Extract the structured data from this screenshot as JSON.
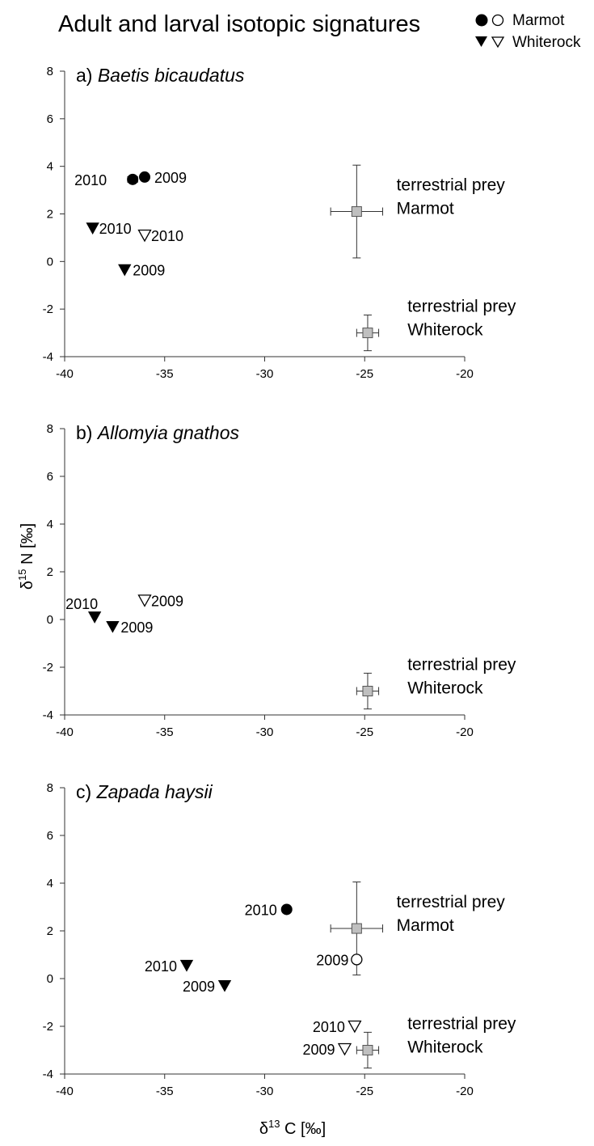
{
  "figure_title": "Adult and larval isotopic signatures",
  "legend": [
    {
      "label": "Marmot",
      "symbols": [
        "filled-circle",
        "open-circle"
      ]
    },
    {
      "label": "Whiterock",
      "symbols": [
        "filled-triangle-down",
        "open-triangle-down"
      ]
    }
  ],
  "axes": {
    "xlabel": {
      "prefix": "δ",
      "superscript": "13",
      "main": " C [‰]"
    },
    "ylabel": {
      "prefix": "δ",
      "superscript": "15",
      "main": " N [‰]"
    },
    "xlim": [
      -40,
      -20
    ],
    "ylim": [
      -4,
      8
    ],
    "xticks": [
      -40,
      -35,
      -30,
      -25,
      -20
    ],
    "yticks": [
      -4,
      -2,
      0,
      2,
      4,
      6,
      8
    ]
  },
  "chart_data": [
    {
      "type": "scatter",
      "panel": "a)",
      "species": "Baetis bicaudatus",
      "points": [
        {
          "site": "Marmot",
          "stage": "adult",
          "x": -36.6,
          "y": 3.45,
          "label": "2010",
          "xerr": 0.25
        },
        {
          "site": "Marmot",
          "stage": "adult",
          "x": -36.0,
          "y": 3.55,
          "label": "2009"
        },
        {
          "site": "Whiterock",
          "stage": "adult",
          "x": -38.6,
          "y": 1.4,
          "label": "2010"
        },
        {
          "site": "Whiterock",
          "stage": "larval",
          "x": -36.0,
          "y": 1.1,
          "label": "2010"
        },
        {
          "site": "Whiterock",
          "stage": "adult",
          "x": -37.0,
          "y": -0.35,
          "label": "2009"
        }
      ],
      "prey": [
        {
          "site": "Marmot",
          "label_line1": "terrestrial prey",
          "label_line2": "Marmot",
          "x": -25.4,
          "y": 2.1,
          "xerr": 1.3,
          "yerr": 1.95
        },
        {
          "site": "Whiterock",
          "label_line1": "terrestrial prey",
          "label_line2": "Whiterock",
          "x": -24.85,
          "y": -3.0,
          "xerr": 0.55,
          "yerr": 0.75
        }
      ]
    },
    {
      "type": "scatter",
      "panel": "b)",
      "species": "Allomyia gnathos",
      "points": [
        {
          "site": "Whiterock",
          "stage": "adult",
          "x": -38.5,
          "y": 0.1,
          "label": "2010"
        },
        {
          "site": "Whiterock",
          "stage": "larval",
          "x": -36.0,
          "y": 0.8,
          "label": "2009"
        },
        {
          "site": "Whiterock",
          "stage": "adult",
          "x": -37.6,
          "y": -0.3,
          "label": "2009"
        }
      ],
      "prey": [
        {
          "site": "Whiterock",
          "label_line1": "terrestrial prey",
          "label_line2": "Whiterock",
          "x": -24.85,
          "y": -3.0,
          "xerr": 0.55,
          "yerr": 0.75
        }
      ]
    },
    {
      "type": "scatter",
      "panel": "c)",
      "species": "Zapada haysii",
      "points": [
        {
          "site": "Marmot",
          "stage": "adult",
          "x": -28.9,
          "y": 2.9,
          "label": "2010"
        },
        {
          "site": "Marmot",
          "stage": "larval",
          "x": -25.4,
          "y": 0.8,
          "label": "2009"
        },
        {
          "site": "Whiterock",
          "stage": "adult",
          "x": -33.9,
          "y": 0.55,
          "label": "2010"
        },
        {
          "site": "Whiterock",
          "stage": "adult",
          "x": -32.0,
          "y": -0.3,
          "label": "2009"
        },
        {
          "site": "Whiterock",
          "stage": "larval",
          "x": -25.5,
          "y": -2.0,
          "label": "2010"
        },
        {
          "site": "Whiterock",
          "stage": "larval",
          "x": -26.0,
          "y": -2.95,
          "label": "2009"
        }
      ],
      "prey": [
        {
          "site": "Marmot",
          "label_line1": "terrestrial prey",
          "label_line2": "Marmot",
          "x": -25.4,
          "y": 2.1,
          "xerr": 1.3,
          "yerr": 1.95
        },
        {
          "site": "Whiterock",
          "label_line1": "terrestrial prey",
          "label_line2": "Whiterock",
          "x": -24.85,
          "y": -3.0,
          "xerr": 0.55,
          "yerr": 0.75
        }
      ]
    }
  ]
}
